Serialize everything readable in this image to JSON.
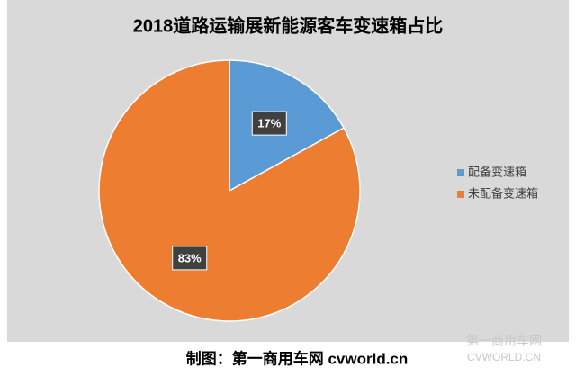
{
  "chart_data": {
    "type": "pie",
    "title": "2018道路运输展新能源客车变速箱占比",
    "categories": [
      "配备变速箱",
      "未配备变速箱"
    ],
    "values": [
      17,
      83
    ],
    "value_labels": [
      "17%",
      "83%"
    ],
    "colors": [
      "#5b9bd5",
      "#ed7d31"
    ],
    "legend": "right"
  },
  "caption": "制图：第一商用车网 cvworld.cn",
  "watermark": [
    "第一商用车网",
    "CVWORLD.CN"
  ]
}
